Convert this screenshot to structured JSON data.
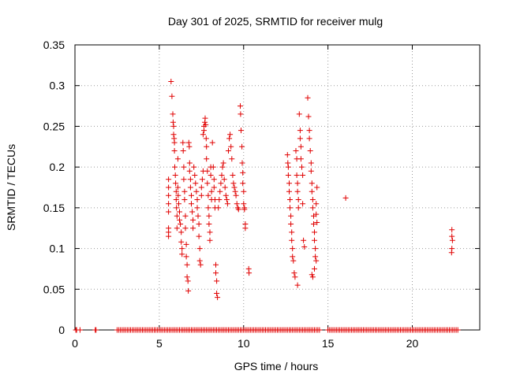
{
  "chart_data": {
    "type": "scatter",
    "title": "Day 301 of 2025, SRMTID for receiver mulg",
    "xlabel": "GPS time / hours",
    "ylabel": "SRMTID / TECUs",
    "xlim": [
      0,
      24
    ],
    "ylim": [
      0,
      0.35
    ],
    "xticks": [
      0,
      5,
      10,
      15,
      20
    ],
    "yticks": [
      0,
      0.05,
      0.1,
      0.15,
      0.2,
      0.25,
      0.3,
      0.35
    ],
    "xtick_labels": [
      "0",
      "5",
      "10",
      "15",
      "20"
    ],
    "ytick_labels": [
      "0",
      "0.05",
      "0.1",
      "0.15",
      "0.2",
      "0.25",
      "0.3",
      "0.35"
    ],
    "grid": true,
    "marker": "+",
    "color": "#e00000",
    "series": [
      {
        "name": "SRMTID",
        "points": [
          [
            5.55,
            0.185
          ],
          [
            5.55,
            0.175
          ],
          [
            5.55,
            0.165
          ],
          [
            5.55,
            0.155
          ],
          [
            5.55,
            0.145
          ],
          [
            5.55,
            0.125
          ],
          [
            5.55,
            0.12
          ],
          [
            5.55,
            0.115
          ],
          [
            5.7,
            0.305
          ],
          [
            5.75,
            0.287
          ],
          [
            5.8,
            0.265
          ],
          [
            5.82,
            0.255
          ],
          [
            5.85,
            0.25
          ],
          [
            5.85,
            0.24
          ],
          [
            5.88,
            0.235
          ],
          [
            5.9,
            0.23
          ],
          [
            5.9,
            0.22
          ],
          [
            5.92,
            0.2
          ],
          [
            5.95,
            0.19
          ],
          [
            5.97,
            0.18
          ],
          [
            6.0,
            0.17
          ],
          [
            6.0,
            0.16
          ],
          [
            6.02,
            0.15
          ],
          [
            6.05,
            0.14
          ],
          [
            6.05,
            0.125
          ],
          [
            6.1,
            0.21
          ],
          [
            6.1,
            0.175
          ],
          [
            6.12,
            0.165
          ],
          [
            6.15,
            0.155
          ],
          [
            6.2,
            0.145
          ],
          [
            6.2,
            0.135
          ],
          [
            6.25,
            0.13
          ],
          [
            6.3,
            0.12
          ],
          [
            6.3,
            0.108
          ],
          [
            6.35,
            0.1
          ],
          [
            6.35,
            0.093
          ],
          [
            6.4,
            0.23
          ],
          [
            6.42,
            0.22
          ],
          [
            6.45,
            0.2
          ],
          [
            6.45,
            0.185
          ],
          [
            6.5,
            0.17
          ],
          [
            6.5,
            0.16
          ],
          [
            6.55,
            0.14
          ],
          [
            6.55,
            0.125
          ],
          [
            6.6,
            0.105
          ],
          [
            6.6,
            0.09
          ],
          [
            6.65,
            0.08
          ],
          [
            6.65,
            0.065
          ],
          [
            6.7,
            0.06
          ],
          [
            6.72,
            0.048
          ],
          [
            6.75,
            0.23
          ],
          [
            6.78,
            0.225
          ],
          [
            6.8,
            0.205
          ],
          [
            6.8,
            0.195
          ],
          [
            6.85,
            0.185
          ],
          [
            6.85,
            0.175
          ],
          [
            6.9,
            0.165
          ],
          [
            6.9,
            0.155
          ],
          [
            6.95,
            0.145
          ],
          [
            7.0,
            0.135
          ],
          [
            7.0,
            0.125
          ],
          [
            7.05,
            0.2
          ],
          [
            7.1,
            0.19
          ],
          [
            7.15,
            0.18
          ],
          [
            7.2,
            0.17
          ],
          [
            7.25,
            0.16
          ],
          [
            7.25,
            0.15
          ],
          [
            7.3,
            0.14
          ],
          [
            7.35,
            0.13
          ],
          [
            7.35,
            0.115
          ],
          [
            7.4,
            0.1
          ],
          [
            7.4,
            0.085
          ],
          [
            7.45,
            0.08
          ],
          [
            7.5,
            0.175
          ],
          [
            7.5,
            0.165
          ],
          [
            7.55,
            0.185
          ],
          [
            7.6,
            0.195
          ],
          [
            7.6,
            0.24
          ],
          [
            7.65,
            0.245
          ],
          [
            7.65,
            0.25
          ],
          [
            7.7,
            0.255
          ],
          [
            7.72,
            0.26
          ],
          [
            7.75,
            0.252
          ],
          [
            7.78,
            0.235
          ],
          [
            7.8,
            0.225
          ],
          [
            7.8,
            0.21
          ],
          [
            7.85,
            0.195
          ],
          [
            7.85,
            0.18
          ],
          [
            7.9,
            0.165
          ],
          [
            7.9,
            0.15
          ],
          [
            7.95,
            0.14
          ],
          [
            7.95,
            0.13
          ],
          [
            8.0,
            0.12
          ],
          [
            8.0,
            0.11
          ],
          [
            8.05,
            0.2
          ],
          [
            8.05,
            0.19
          ],
          [
            8.1,
            0.17
          ],
          [
            8.1,
            0.16
          ],
          [
            8.15,
            0.23
          ],
          [
            8.2,
            0.2
          ],
          [
            8.25,
            0.185
          ],
          [
            8.25,
            0.175
          ],
          [
            8.3,
            0.16
          ],
          [
            8.3,
            0.15
          ],
          [
            8.35,
            0.08
          ],
          [
            8.35,
            0.07
          ],
          [
            8.4,
            0.06
          ],
          [
            8.4,
            0.045
          ],
          [
            8.45,
            0.04
          ],
          [
            8.5,
            0.15
          ],
          [
            8.55,
            0.16
          ],
          [
            8.6,
            0.17
          ],
          [
            8.65,
            0.18
          ],
          [
            8.7,
            0.19
          ],
          [
            8.75,
            0.2
          ],
          [
            8.8,
            0.205
          ],
          [
            8.85,
            0.185
          ],
          [
            8.9,
            0.175
          ],
          [
            8.95,
            0.165
          ],
          [
            9.0,
            0.16
          ],
          [
            9.05,
            0.155
          ],
          [
            9.1,
            0.22
          ],
          [
            9.15,
            0.235
          ],
          [
            9.2,
            0.24
          ],
          [
            9.25,
            0.225
          ],
          [
            9.3,
            0.21
          ],
          [
            9.35,
            0.19
          ],
          [
            9.4,
            0.18
          ],
          [
            9.45,
            0.175
          ],
          [
            9.5,
            0.17
          ],
          [
            9.55,
            0.165
          ],
          [
            9.6,
            0.155
          ],
          [
            9.65,
            0.15
          ],
          [
            9.7,
            0.148
          ],
          [
            9.8,
            0.275
          ],
          [
            9.82,
            0.265
          ],
          [
            9.85,
            0.245
          ],
          [
            9.9,
            0.225
          ],
          [
            9.92,
            0.205
          ],
          [
            9.95,
            0.193
          ],
          [
            9.95,
            0.18
          ],
          [
            10.0,
            0.17
          ],
          [
            10.0,
            0.155
          ],
          [
            10.05,
            0.15
          ],
          [
            10.05,
            0.148
          ],
          [
            10.1,
            0.13
          ],
          [
            10.1,
            0.125
          ],
          [
            10.3,
            0.075
          ],
          [
            10.32,
            0.07
          ],
          [
            12.6,
            0.215
          ],
          [
            12.62,
            0.205
          ],
          [
            12.65,
            0.2
          ],
          [
            12.65,
            0.19
          ],
          [
            12.7,
            0.18
          ],
          [
            12.7,
            0.17
          ],
          [
            12.75,
            0.16
          ],
          [
            12.75,
            0.15
          ],
          [
            12.8,
            0.14
          ],
          [
            12.8,
            0.13
          ],
          [
            12.85,
            0.12
          ],
          [
            12.85,
            0.11
          ],
          [
            12.9,
            0.1
          ],
          [
            12.9,
            0.09
          ],
          [
            12.95,
            0.085
          ],
          [
            13.0,
            0.07
          ],
          [
            13.05,
            0.065
          ],
          [
            13.1,
            0.22
          ],
          [
            13.15,
            0.21
          ],
          [
            13.15,
            0.19
          ],
          [
            13.2,
            0.18
          ],
          [
            13.2,
            0.17
          ],
          [
            13.25,
            0.16
          ],
          [
            13.25,
            0.15
          ],
          [
            13.3,
            0.265
          ],
          [
            13.35,
            0.245
          ],
          [
            13.35,
            0.235
          ],
          [
            13.4,
            0.225
          ],
          [
            13.4,
            0.21
          ],
          [
            13.45,
            0.2
          ],
          [
            13.5,
            0.19
          ],
          [
            13.5,
            0.155
          ],
          [
            13.55,
            0.11
          ],
          [
            13.6,
            0.102
          ],
          [
            13.2,
            0.055
          ],
          [
            13.8,
            0.285
          ],
          [
            13.85,
            0.262
          ],
          [
            13.9,
            0.245
          ],
          [
            13.9,
            0.235
          ],
          [
            13.95,
            0.22
          ],
          [
            14.0,
            0.205
          ],
          [
            14.0,
            0.195
          ],
          [
            14.05,
            0.18
          ],
          [
            14.05,
            0.17
          ],
          [
            14.1,
            0.16
          ],
          [
            14.1,
            0.15
          ],
          [
            14.15,
            0.14
          ],
          [
            14.15,
            0.13
          ],
          [
            14.2,
            0.12
          ],
          [
            14.2,
            0.11
          ],
          [
            14.25,
            0.1
          ],
          [
            14.25,
            0.09
          ],
          [
            14.3,
            0.085
          ],
          [
            14.05,
            0.068
          ],
          [
            14.1,
            0.065
          ],
          [
            14.2,
            0.075
          ],
          [
            14.3,
            0.142
          ],
          [
            14.35,
            0.132
          ],
          [
            14.35,
            0.175
          ],
          [
            14.3,
            0.155
          ],
          [
            16.05,
            0.162
          ],
          [
            22.35,
            0.123
          ],
          [
            22.35,
            0.115
          ],
          [
            22.38,
            0.11
          ],
          [
            22.35,
            0.1
          ],
          [
            22.33,
            0.095
          ]
        ]
      }
    ],
    "zero_band_hours": [
      0.05,
      0.1,
      0.3,
      1.2,
      1.25,
      [
        2.5,
        14.5,
        0.1
      ],
      [
        15.0,
        22.7,
        0.1
      ]
    ]
  }
}
